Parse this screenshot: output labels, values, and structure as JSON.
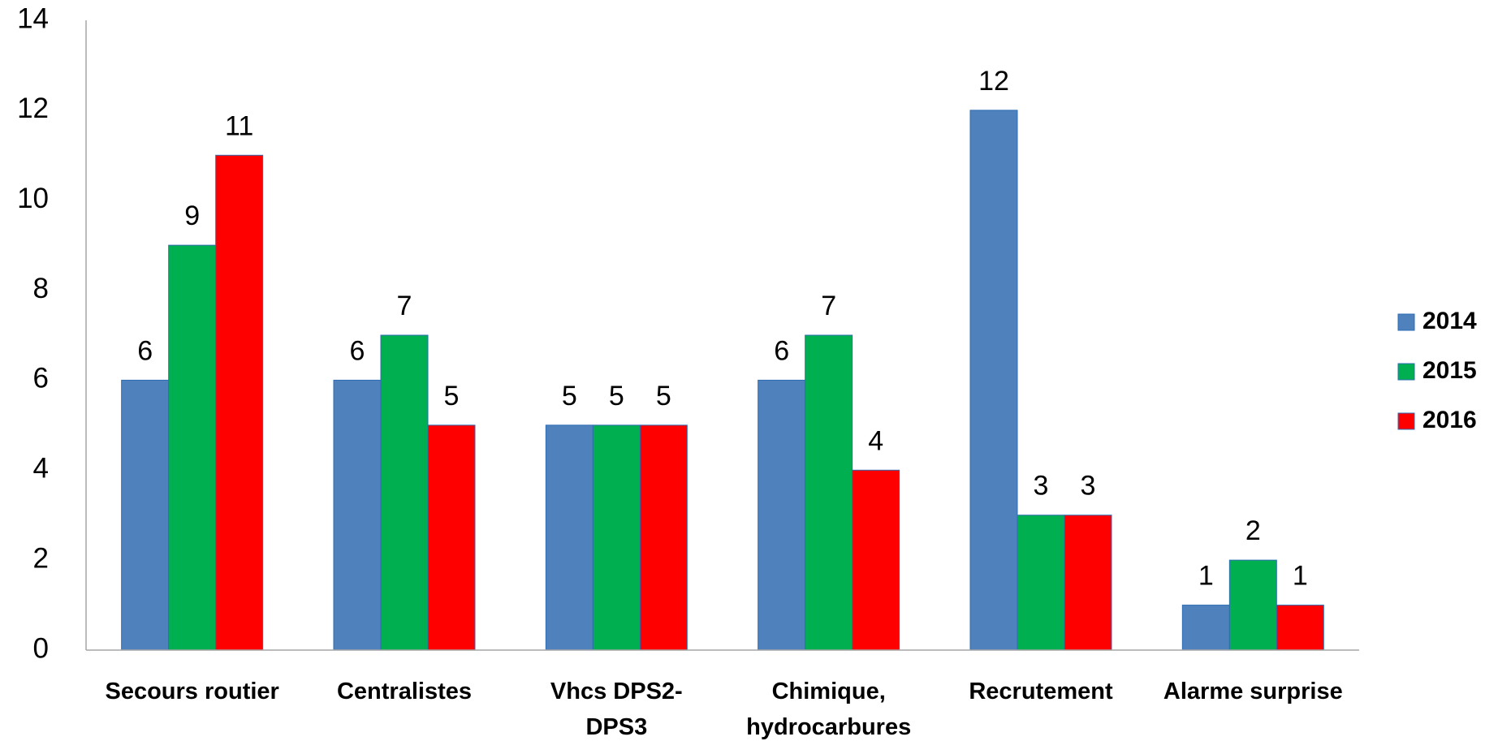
{
  "chart_data": {
    "type": "bar",
    "categories": [
      "Secours routier",
      "Centralistes",
      "Vhcs DPS2-DPS3",
      "Chimique, hydrocarbures",
      "Recrutement",
      "Alarme surprise"
    ],
    "series": [
      {
        "name": "2014",
        "color": "#4f81bd",
        "values": [
          6,
          6,
          5,
          6,
          12,
          1
        ]
      },
      {
        "name": "2015",
        "color": "#00b050",
        "values": [
          9,
          7,
          5,
          7,
          3,
          2
        ]
      },
      {
        "name": "2016",
        "color": "#ff0000",
        "values": [
          11,
          5,
          5,
          4,
          3,
          1
        ]
      }
    ],
    "ylim": [
      0,
      14
    ],
    "yticks": [
      0,
      2,
      4,
      6,
      8,
      10,
      12,
      14
    ],
    "grid": false,
    "legend": "right"
  }
}
